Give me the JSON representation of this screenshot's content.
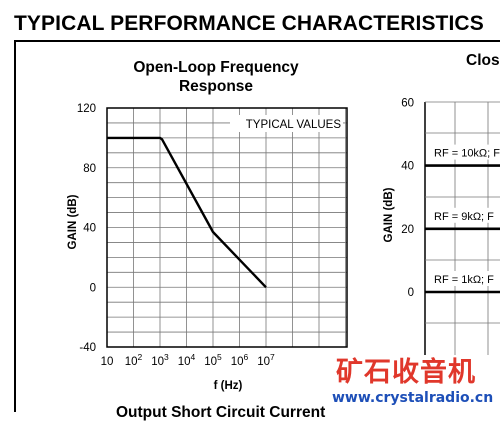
{
  "section_title": "TYPICAL PERFORMANCE CHARACTERISTICS",
  "bottom_caption": "Output Short Circuit Current",
  "watermark": {
    "text": "矿石收音机",
    "url": "www.crystalradio.cn"
  },
  "chart_data": [
    {
      "type": "line",
      "title": "Open-Loop Frequency Response",
      "title_lines": [
        "Open-Loop Frequency",
        "Response"
      ],
      "xlabel": "f (Hz)",
      "ylabel": "GAIN (dB)",
      "x_scale": "log",
      "xlim": [
        10,
        10000000
      ],
      "ylim": [
        -40,
        120
      ],
      "x_tick_labels": [
        {
          "base": "10",
          "exp": ""
        },
        {
          "base": "10",
          "exp": "2"
        },
        {
          "base": "10",
          "exp": "3"
        },
        {
          "base": "10",
          "exp": "4"
        },
        {
          "base": "10",
          "exp": "5"
        },
        {
          "base": "10",
          "exp": "6"
        },
        {
          "base": "10",
          "exp": "7"
        }
      ],
      "y_ticks": [
        -40,
        0,
        40,
        80,
        120
      ],
      "y_tick_labels": [
        "-40",
        "0",
        "40",
        "80",
        "120"
      ],
      "grid": true,
      "annotation": "TYPICAL VALUES",
      "series": [
        {
          "x": [
            10,
            30,
            100,
            1000,
            1200,
            100000,
            10000000
          ],
          "y": [
            100,
            100,
            100,
            100,
            99,
            37,
            0
          ]
        }
      ]
    },
    {
      "type": "line",
      "title": "Clos",
      "ylabel": "GAIN (dB)",
      "ylim": [
        0,
        60
      ],
      "y_ticks": [
        0,
        20,
        40,
        60
      ],
      "y_tick_labels": [
        "0",
        "20",
        "40",
        "60"
      ],
      "grid": true,
      "series": [
        {
          "label": "RF = 10kΩ; F",
          "y": 40
        },
        {
          "label": "RF = 9kΩ; F",
          "y": 20
        },
        {
          "label": "RF = 1kΩ; F",
          "y": 0
        }
      ]
    }
  ]
}
